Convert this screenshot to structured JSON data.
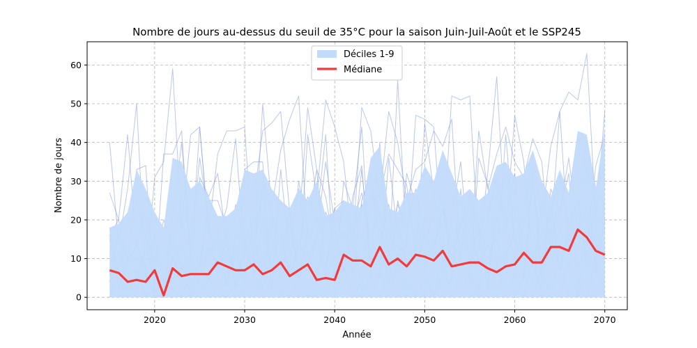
{
  "chart_data": {
    "type": "line",
    "title": "Nombre de jours au-dessus du seuil de 35°C pour la saison Juin-Juil-Août et le SSP245",
    "xlabel": "Année",
    "ylabel": "Nombre de jours",
    "xlim": [
      2012.5,
      2072.5
    ],
    "ylim": [
      -3.2,
      66
    ],
    "xticks": [
      2020,
      2030,
      2040,
      2050,
      2060,
      2070
    ],
    "yticks": [
      0,
      10,
      20,
      30,
      40,
      50,
      60
    ],
    "grid": true,
    "legend_position": "top-center",
    "legend": {
      "band": "Déciles 1-9",
      "median": "Médiane"
    },
    "colors": {
      "band": "#c2dbfb",
      "members": "#8aa2e4",
      "median": "#f23a3a"
    },
    "x": [
      2015,
      2016,
      2017,
      2018,
      2019,
      2020,
      2021,
      2022,
      2023,
      2024,
      2025,
      2026,
      2027,
      2028,
      2029,
      2030,
      2031,
      2032,
      2033,
      2034,
      2035,
      2036,
      2037,
      2038,
      2039,
      2040,
      2041,
      2042,
      2043,
      2044,
      2045,
      2046,
      2047,
      2048,
      2049,
      2050,
      2051,
      2052,
      2053,
      2054,
      2055,
      2056,
      2057,
      2058,
      2059,
      2060,
      2061,
      2062,
      2063,
      2064,
      2065,
      2066,
      2067,
      2068,
      2069,
      2070
    ],
    "series": [
      {
        "name": "Médiane",
        "values": [
          7,
          6.3,
          4,
          4.5,
          4,
          7,
          0.5,
          7.5,
          5.5,
          6,
          6,
          6,
          9,
          8,
          7,
          7,
          8.5,
          6,
          7,
          9,
          5.5,
          7,
          8.5,
          4.5,
          5,
          4.5,
          11,
          9.5,
          9.5,
          8,
          13,
          8.5,
          10,
          8,
          11,
          10.5,
          9.5,
          12,
          8,
          8.5,
          9,
          9,
          7.5,
          6.5,
          8,
          8.5,
          11.5,
          9,
          9,
          13,
          13,
          12,
          17.5,
          15.5,
          12,
          11
        ]
      },
      {
        "name": "Déciles 1-9 (haut)",
        "values": [
          18,
          19,
          22,
          33,
          28,
          22,
          18,
          36,
          35,
          28,
          30,
          26,
          21,
          21,
          23,
          33,
          32,
          33,
          28,
          25,
          23,
          28,
          25,
          30,
          21,
          22,
          25,
          24,
          23,
          36,
          39,
          23,
          22,
          27,
          27,
          34,
          30,
          38,
          32,
          26,
          28,
          25,
          27,
          34,
          35,
          31,
          32,
          38,
          30,
          26,
          33,
          27,
          43,
          42,
          28,
          44
        ]
      },
      {
        "name": "Déciles 1-9 (bas)",
        "values": [
          0,
          0,
          0,
          0,
          0,
          0,
          0,
          0,
          0,
          0,
          0,
          0,
          0,
          0,
          0,
          0,
          0,
          0,
          0,
          0,
          0,
          0,
          0,
          0,
          0,
          0,
          0,
          0,
          0,
          0,
          0,
          0,
          0,
          0,
          0,
          0,
          0,
          0,
          0,
          0,
          0,
          0,
          0,
          0,
          0,
          0,
          0,
          0,
          0,
          0,
          0,
          0,
          0,
          0,
          0,
          0
        ]
      }
    ],
    "members": [
      [
        40,
        14,
        28,
        50,
        5,
        31,
        35,
        59,
        18,
        42,
        44,
        17,
        37,
        43,
        43,
        44,
        8,
        50,
        23,
        38,
        46,
        52,
        14,
        20,
        42,
        3,
        30,
        23,
        44,
        6,
        40,
        8,
        56,
        13,
        47,
        46,
        44,
        13,
        52,
        51,
        52,
        12,
        32,
        57,
        16,
        47,
        35,
        8,
        2,
        16,
        48,
        53,
        51,
        63,
        20,
        48
      ],
      [
        27,
        20,
        42,
        13,
        22,
        3,
        37,
        37,
        43,
        9,
        44,
        16,
        16,
        23,
        41,
        10,
        25,
        43,
        45,
        48,
        22,
        5,
        42,
        26,
        51,
        44,
        35,
        13,
        49,
        43,
        25,
        48,
        40,
        25,
        33,
        35,
        43,
        39,
        46,
        9,
        8,
        43,
        28,
        37,
        44,
        35,
        31,
        41,
        35,
        11,
        30,
        26,
        42,
        33,
        23,
        14
      ],
      [
        16,
        20,
        9,
        33,
        34,
        0,
        1,
        21,
        40,
        11,
        36,
        20,
        5,
        17,
        3,
        33,
        35,
        35,
        2,
        33,
        11,
        18,
        49,
        33,
        26,
        12,
        24,
        17,
        23,
        25,
        26,
        37,
        33,
        29,
        11,
        45,
        27,
        26,
        4,
        28,
        3,
        36,
        29,
        8,
        42,
        14,
        23,
        37,
        20,
        39,
        48,
        13,
        8,
        13,
        34,
        42
      ],
      [
        4,
        16,
        1,
        3,
        16,
        2,
        0,
        11,
        2,
        4,
        31,
        26,
        32,
        14,
        3,
        8,
        11,
        30,
        22,
        13,
        17,
        28,
        10,
        16,
        35,
        19,
        7,
        26,
        34,
        6,
        6,
        36,
        16,
        2,
        4,
        8,
        0,
        6,
        21,
        35,
        8,
        19,
        6,
        20,
        32,
        27,
        24,
        31,
        4,
        22,
        17,
        13,
        22,
        41,
        28,
        35
      ],
      [
        15,
        3,
        10,
        13,
        6,
        1,
        6,
        2,
        19,
        14,
        8,
        25,
        25,
        18,
        11,
        6,
        15,
        2,
        20,
        16,
        7,
        30,
        18,
        33,
        6,
        23,
        25,
        12,
        33,
        9,
        13,
        4,
        11,
        12,
        12,
        20,
        13,
        21,
        27,
        11,
        26,
        1,
        21,
        31,
        20,
        32,
        5,
        33,
        5,
        28,
        22,
        36,
        17,
        34,
        6,
        20
      ],
      [
        0,
        9,
        6,
        2,
        10,
        10,
        13,
        10,
        5,
        19,
        13,
        11,
        16,
        3,
        16,
        14,
        12,
        28,
        3,
        10,
        22,
        11,
        12,
        3,
        22,
        16,
        22,
        6,
        25,
        32,
        14,
        24,
        8,
        32,
        24,
        8,
        27,
        9,
        17,
        19,
        23,
        18,
        2,
        27,
        31,
        15,
        11,
        3,
        25,
        16,
        22,
        32,
        1,
        20,
        9,
        9
      ],
      [
        16,
        7,
        13,
        11,
        5,
        3,
        2,
        10,
        6,
        1,
        12,
        12,
        13,
        3,
        11,
        11,
        16,
        6,
        21,
        4,
        22,
        4,
        18,
        7,
        9,
        20,
        15,
        19,
        1,
        27,
        22,
        3,
        25,
        15,
        18,
        11,
        13,
        23,
        10,
        19,
        13,
        14,
        4,
        20,
        15,
        15,
        4,
        30,
        10,
        24,
        7,
        17,
        25,
        7,
        25,
        17
      ],
      [
        6,
        17,
        9,
        10,
        4,
        16,
        4,
        14,
        7,
        8,
        3,
        4,
        10,
        12,
        2,
        14,
        6,
        20,
        8,
        17,
        5,
        14,
        9,
        13,
        8,
        15,
        7,
        11,
        24,
        15,
        9,
        10,
        20,
        8,
        15,
        10,
        12,
        23,
        13,
        11,
        21,
        9,
        10,
        16,
        19,
        10,
        20,
        17,
        9,
        16,
        7,
        19,
        13,
        24,
        13,
        10
      ],
      [
        3,
        2,
        11,
        5,
        12,
        8,
        8,
        6,
        14,
        5,
        9,
        7,
        10,
        14,
        5,
        11,
        10,
        9,
        12,
        6,
        16,
        10,
        7,
        16,
        5,
        12,
        17,
        9,
        13,
        11,
        18,
        12,
        6,
        14,
        13,
        8,
        15,
        11,
        10,
        14,
        12,
        17,
        13,
        9,
        11,
        16,
        10,
        13,
        14,
        8,
        17,
        15,
        12,
        18,
        11,
        14
      ],
      [
        18,
        3,
        8,
        14,
        8,
        0,
        2,
        11,
        9,
        4,
        7,
        9,
        15,
        6,
        13,
        3,
        21,
        9,
        5,
        12,
        19,
        7,
        11,
        14,
        8,
        17,
        6,
        18,
        14,
        10,
        5,
        15,
        13,
        11,
        7,
        17,
        10,
        13,
        7,
        19,
        11,
        8,
        14,
        6,
        12,
        21,
        16,
        9,
        13,
        18,
        10,
        15,
        20,
        11,
        16,
        13
      ],
      [
        0,
        5,
        0,
        7,
        0,
        2,
        0,
        2,
        0,
        3,
        0,
        5,
        0,
        4,
        0,
        1,
        0,
        6,
        0,
        2,
        0,
        7,
        0,
        5,
        0,
        8,
        0,
        3,
        0,
        6,
        0,
        9,
        0,
        4,
        0,
        5,
        0,
        10,
        0,
        7,
        0,
        3,
        0,
        8,
        0,
        6,
        0,
        11,
        0,
        4,
        0,
        9,
        0,
        12,
        0,
        7
      ],
      [
        2,
        0,
        4,
        0,
        1,
        0,
        3,
        0,
        2,
        0,
        5,
        0,
        1,
        0,
        4,
        0,
        6,
        0,
        2,
        0,
        7,
        0,
        3,
        0,
        5,
        0,
        8,
        0,
        4,
        0,
        6,
        0,
        9,
        0,
        2,
        0,
        10,
        0,
        5,
        0,
        7,
        0,
        3,
        0,
        11,
        0,
        6,
        0,
        8,
        0,
        12,
        0,
        4,
        0,
        9,
        0
      ],
      [
        9,
        12,
        6,
        4,
        13,
        5,
        9,
        16,
        7,
        11,
        5,
        13,
        8,
        4,
        12,
        15,
        6,
        10,
        14,
        8,
        4,
        13,
        11,
        6,
        15,
        9,
        13,
        7,
        16,
        12,
        9,
        18,
        10,
        14,
        8,
        16,
        12,
        6,
        14,
        10,
        17,
        9,
        13,
        15,
        8,
        18,
        12,
        10,
        16,
        21,
        13,
        11,
        19,
        14,
        17,
        12
      ],
      [
        12,
        8,
        19,
        25,
        16,
        9,
        20,
        13,
        26,
        15,
        8,
        22,
        17,
        10,
        24,
        14,
        21,
        16,
        11,
        25,
        18,
        12,
        26,
        20,
        15,
        23,
        13,
        19,
        27,
        16,
        22,
        14,
        24,
        18,
        28,
        15,
        21,
        25,
        13,
        19,
        27,
        16,
        22,
        29,
        18,
        24,
        20,
        26,
        17,
        23,
        30,
        19,
        25,
        21,
        27,
        24
      ]
    ]
  }
}
